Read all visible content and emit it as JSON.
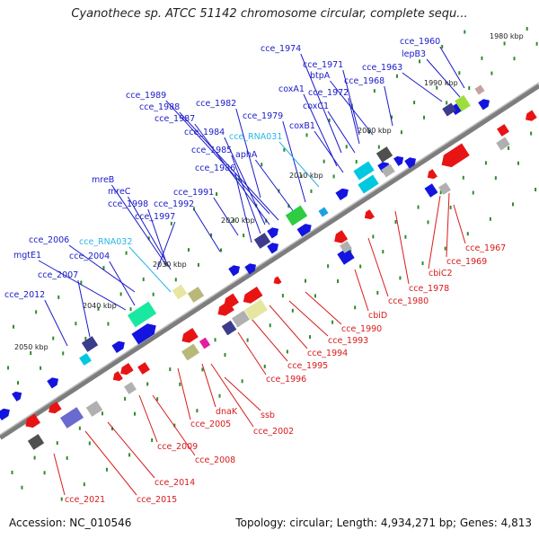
{
  "title": "Cyanothece sp. ATCC 51142 chromosome circular, complete sequ...",
  "footer": {
    "accession": "Accession: NC_010546",
    "summary": "Topology: circular; Length: 4,934,271 bp; Genes: 4,813"
  },
  "colors": {
    "forward_label": "#1a1ac8",
    "reverse_label": "#d81b1b",
    "rna_label": "#29b6e8",
    "backbone": "#8c8c8c",
    "tick_dot": "#2e8b2e"
  },
  "ticks": [
    {
      "label": "1980 kbp"
    },
    {
      "label": "1990 kbp"
    },
    {
      "label": "2000 kbp"
    },
    {
      "label": "2010 kbp"
    },
    {
      "label": "2020 kbp"
    },
    {
      "label": "2030 kbp"
    },
    {
      "label": "2040 kbp"
    },
    {
      "label": "2050 kbp"
    }
  ],
  "forward_labels": [
    {
      "text": "cce_1960",
      "kind": "gene"
    },
    {
      "text": "lepB3",
      "kind": "gene"
    },
    {
      "text": "cce_1963",
      "kind": "gene"
    },
    {
      "text": "cce_1968",
      "kind": "gene"
    },
    {
      "text": "cce_1974",
      "kind": "gene"
    },
    {
      "text": "cce_1971",
      "kind": "gene"
    },
    {
      "text": "btpA",
      "kind": "gene"
    },
    {
      "text": "coxA1",
      "kind": "gene"
    },
    {
      "text": "cce_1972",
      "kind": "gene"
    },
    {
      "text": "coxC1",
      "kind": "gene"
    },
    {
      "text": "coxB1",
      "kind": "gene"
    },
    {
      "text": "cce_1989",
      "kind": "gene"
    },
    {
      "text": "cce_1988",
      "kind": "gene"
    },
    {
      "text": "cce_1987",
      "kind": "gene"
    },
    {
      "text": "cce_1982",
      "kind": "gene"
    },
    {
      "text": "cce_1979",
      "kind": "gene"
    },
    {
      "text": "cce_1984",
      "kind": "gene"
    },
    {
      "text": "cce_RNA031",
      "kind": "rna"
    },
    {
      "text": "cce_1985",
      "kind": "gene"
    },
    {
      "text": "aphA",
      "kind": "gene"
    },
    {
      "text": "cce_1986",
      "kind": "gene"
    },
    {
      "text": "mreB",
      "kind": "gene"
    },
    {
      "text": "mreC",
      "kind": "gene"
    },
    {
      "text": "cce_1991",
      "kind": "gene"
    },
    {
      "text": "cce_1998",
      "kind": "gene"
    },
    {
      "text": "cce_1992",
      "kind": "gene"
    },
    {
      "text": "cce_1997",
      "kind": "gene"
    },
    {
      "text": "cce_2006",
      "kind": "gene"
    },
    {
      "text": "cce_RNA032",
      "kind": "rna"
    },
    {
      "text": "mgtE1",
      "kind": "gene"
    },
    {
      "text": "cce_2004",
      "kind": "gene"
    },
    {
      "text": "cce_2007",
      "kind": "gene"
    },
    {
      "text": "cce_2012",
      "kind": "gene"
    }
  ],
  "reverse_labels": [
    {
      "text": "cce_1967"
    },
    {
      "text": "cce_1969"
    },
    {
      "text": "cbiC2"
    },
    {
      "text": "cce_1978"
    },
    {
      "text": "cce_1980"
    },
    {
      "text": "cbiD"
    },
    {
      "text": "cce_1990"
    },
    {
      "text": "cce_1993"
    },
    {
      "text": "cce_1994"
    },
    {
      "text": "cce_1995"
    },
    {
      "text": "cce_1996"
    },
    {
      "text": "dnaK"
    },
    {
      "text": "ssb"
    },
    {
      "text": "cce_2005"
    },
    {
      "text": "cce_2002"
    },
    {
      "text": "cce_2009"
    },
    {
      "text": "cce_2008"
    },
    {
      "text": "cce_2014"
    },
    {
      "text": "cce_2015"
    },
    {
      "text": "cce_2021"
    }
  ]
}
